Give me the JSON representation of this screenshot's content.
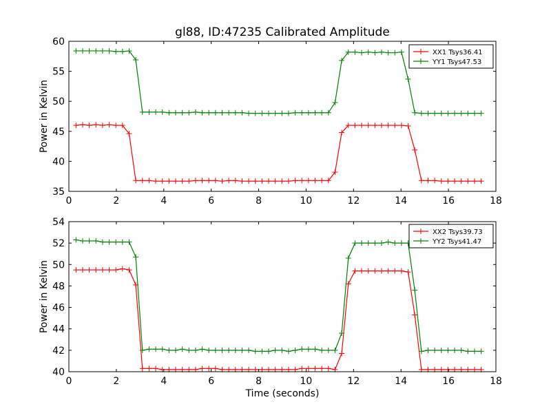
{
  "chart_data": {
    "type": "line",
    "title": "gl88, ID:47235 Calibrated Amplitude",
    "xlabel": "Time (seconds)",
    "x": [
      0.3,
      0.58,
      0.86,
      1.14,
      1.42,
      1.7,
      1.98,
      2.26,
      2.54,
      2.82,
      3.1,
      3.38,
      3.66,
      3.94,
      4.22,
      4.5,
      4.78,
      5.06,
      5.34,
      5.62,
      5.9,
      6.18,
      6.46,
      6.74,
      7.02,
      7.3,
      7.58,
      7.86,
      8.14,
      8.42,
      8.7,
      8.98,
      9.26,
      9.54,
      9.82,
      10.1,
      10.38,
      10.66,
      10.94,
      11.22,
      11.5,
      11.78,
      12.06,
      12.34,
      12.62,
      12.9,
      13.18,
      13.46,
      13.74,
      14.02,
      14.3,
      14.58,
      14.86,
      15.14,
      15.42,
      15.7,
      15.98,
      16.26,
      16.54,
      16.82,
      17.1,
      17.38
    ],
    "panels": [
      {
        "xlim": [
          0,
          18
        ],
        "ylim": [
          35,
          60
        ],
        "xticks": [
          0,
          2,
          4,
          6,
          8,
          10,
          12,
          14,
          16,
          18
        ],
        "yticks": [
          35,
          40,
          45,
          50,
          55,
          60
        ],
        "ylabel": "Power in Kelvin",
        "legend_position": "top-right",
        "series": [
          {
            "name": "XX1 Tsys36.41",
            "color": "#ff0000",
            "values": [
              46.0,
              46.1,
              46.0,
              46.1,
              46.0,
              46.1,
              46.0,
              46.0,
              44.6,
              36.8,
              36.8,
              36.8,
              36.7,
              36.7,
              36.7,
              36.7,
              36.7,
              36.7,
              36.8,
              36.8,
              36.8,
              36.8,
              36.7,
              36.8,
              36.8,
              36.7,
              36.7,
              36.7,
              36.7,
              36.7,
              36.7,
              36.7,
              36.7,
              36.8,
              36.8,
              36.8,
              36.8,
              36.8,
              36.8,
              38.2,
              44.8,
              46.0,
              46.0,
              46.0,
              46.0,
              46.0,
              46.0,
              46.0,
              46.0,
              46.0,
              45.9,
              41.9,
              36.8,
              36.8,
              36.8,
              36.7,
              36.7,
              36.7,
              36.7,
              36.7,
              36.7,
              36.7
            ]
          },
          {
            "name": "YY1 Tsys47.53",
            "color": "#008000",
            "values": [
              58.4,
              58.4,
              58.4,
              58.4,
              58.4,
              58.4,
              58.3,
              58.3,
              58.4,
              56.9,
              48.2,
              48.2,
              48.2,
              48.2,
              48.1,
              48.1,
              48.1,
              48.1,
              48.2,
              48.1,
              48.1,
              48.1,
              48.1,
              48.1,
              48.1,
              48.1,
              48.0,
              48.0,
              48.0,
              48.0,
              48.0,
              48.0,
              48.0,
              48.1,
              48.1,
              48.1,
              48.1,
              48.1,
              48.1,
              49.8,
              56.8,
              58.2,
              58.2,
              58.1,
              58.2,
              58.1,
              58.2,
              58.1,
              58.1,
              58.2,
              53.7,
              48.1,
              48.0,
              48.0,
              48.0,
              48.0,
              48.0,
              48.0,
              48.0,
              48.0,
              48.0,
              48.0
            ]
          }
        ]
      },
      {
        "xlim": [
          0,
          18
        ],
        "ylim": [
          40,
          54
        ],
        "xticks": [
          0,
          2,
          4,
          6,
          8,
          10,
          12,
          14,
          16,
          18
        ],
        "yticks": [
          40,
          42,
          44,
          46,
          48,
          50,
          52,
          54
        ],
        "ylabel": "Power in Kelvin",
        "legend_position": "top-right",
        "series": [
          {
            "name": "XX2 Tsys39.73",
            "color": "#ff0000",
            "values": [
              49.5,
              49.5,
              49.5,
              49.5,
              49.5,
              49.5,
              49.5,
              49.6,
              49.5,
              48.1,
              40.3,
              40.3,
              40.3,
              40.2,
              40.2,
              40.2,
              40.2,
              40.2,
              40.2,
              40.3,
              40.3,
              40.3,
              40.2,
              40.2,
              40.2,
              40.2,
              40.2,
              40.2,
              40.2,
              40.2,
              40.2,
              40.2,
              40.2,
              40.2,
              40.3,
              40.3,
              40.3,
              40.3,
              40.3,
              40.2,
              41.7,
              48.2,
              49.4,
              49.4,
              49.4,
              49.4,
              49.4,
              49.4,
              49.4,
              49.4,
              49.3,
              45.3,
              40.2,
              40.2,
              40.2,
              40.2,
              40.2,
              40.2,
              40.2,
              40.2,
              40.2,
              40.2
            ]
          },
          {
            "name": "YY2 Tsys41.47",
            "color": "#008000",
            "values": [
              52.3,
              52.2,
              52.2,
              52.2,
              52.1,
              52.1,
              52.1,
              52.1,
              52.1,
              50.7,
              42.0,
              42.1,
              42.1,
              42.1,
              42.0,
              42.0,
              42.1,
              42.0,
              42.0,
              42.1,
              42.0,
              42.0,
              42.0,
              42.0,
              42.0,
              42.0,
              42.0,
              41.9,
              41.9,
              41.9,
              42.0,
              42.0,
              41.9,
              42.0,
              42.1,
              42.1,
              42.1,
              42.0,
              42.0,
              42.0,
              43.6,
              50.6,
              52.0,
              52.0,
              52.0,
              52.0,
              52.0,
              52.1,
              52.0,
              52.0,
              52.0,
              47.6,
              41.9,
              42.0,
              42.0,
              42.0,
              42.0,
              42.0,
              42.0,
              41.9,
              41.9,
              41.9
            ]
          }
        ]
      }
    ]
  }
}
